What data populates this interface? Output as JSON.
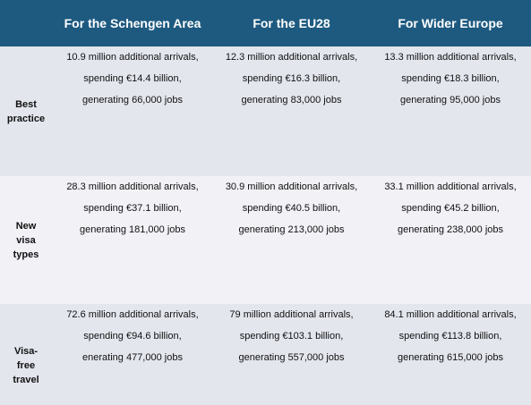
{
  "header": {
    "columns": [
      "For the Schengen Area",
      "For the EU28",
      "For Wider Europe"
    ]
  },
  "rows": [
    {
      "label": [
        "Best",
        "practice"
      ],
      "cells": [
        [
          "10.9 million additional arrivals,",
          "spending €14.4 billion,",
          "generating 66,000 jobs"
        ],
        [
          "12.3 million additional arrivals,",
          "spending €16.3 billion,",
          "generating 83,000 jobs"
        ],
        [
          "13.3 million additional arrivals,",
          "spending €18.3 billion,",
          "generating 95,000 jobs"
        ]
      ]
    },
    {
      "label": [
        "New",
        "visa",
        "types"
      ],
      "cells": [
        [
          "28.3 million additional arrivals,",
          "spending €37.1 billion,",
          "generating 181,000 jobs"
        ],
        [
          "30.9 million additional arrivals,",
          "spending €40.5 billion,",
          "generating 213,000 jobs"
        ],
        [
          "33.1 million additional arrivals,",
          "spending €45.2 billion,",
          "generating 238,000 jobs"
        ]
      ]
    },
    {
      "label": [
        "Visa-",
        "free",
        "travel"
      ],
      "cells": [
        [
          "72.6 million additional arrivals,",
          "spending €94.6 billion,",
          "enerating 477,000 jobs"
        ],
        [
          "79 million additional arrivals,",
          "spending €103.1 billion,",
          "generating 557,000 jobs"
        ],
        [
          "84.1 million additional arrivals,",
          "spending €113.8 billion,",
          "generating 615,000 jobs"
        ]
      ]
    }
  ]
}
